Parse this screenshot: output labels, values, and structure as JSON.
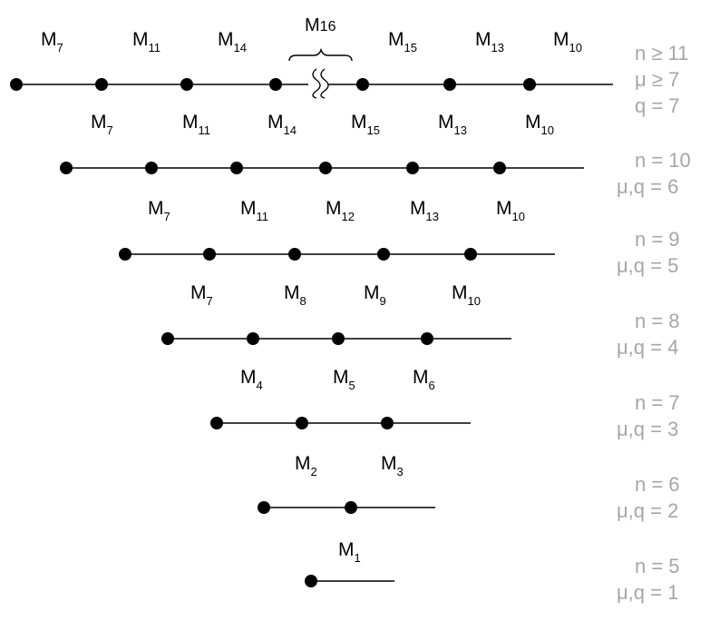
{
  "rows": [
    {
      "id": "n11",
      "labels": [
        [
          "M",
          "7"
        ],
        [
          "M",
          "11"
        ],
        [
          "M",
          "14"
        ],
        [
          "M",
          "15"
        ],
        [
          "M",
          "13"
        ],
        [
          "M",
          "10"
        ]
      ],
      "top_label": [
        "M",
        "16"
      ],
      "side": [
        "n ≥ 11",
        "μ ≥ 7",
        "q = 7"
      ]
    },
    {
      "id": "n10",
      "labels": [
        [
          "M",
          "7"
        ],
        [
          "M",
          "11"
        ],
        [
          "M",
          "14"
        ],
        [
          "M",
          "15"
        ],
        [
          "M",
          "13"
        ],
        [
          "M",
          "10"
        ]
      ],
      "side": [
        "n = 10",
        "μ,q = 6"
      ]
    },
    {
      "id": "n9",
      "labels": [
        [
          "M",
          "7"
        ],
        [
          "M",
          "11"
        ],
        [
          "M",
          "12"
        ],
        [
          "M",
          "13"
        ],
        [
          "M",
          "10"
        ]
      ],
      "side": [
        "n = 9",
        "μ,q = 5"
      ]
    },
    {
      "id": "n8",
      "labels": [
        [
          "M",
          "7"
        ],
        [
          "M",
          "8"
        ],
        [
          "M",
          "9"
        ],
        [
          "M",
          "10"
        ]
      ],
      "side": [
        "n = 8",
        "μ,q = 4"
      ]
    },
    {
      "id": "n7",
      "labels": [
        [
          "M",
          "4"
        ],
        [
          "M",
          "5"
        ],
        [
          "M",
          "6"
        ]
      ],
      "side": [
        "n = 7",
        "μ,q = 3"
      ]
    },
    {
      "id": "n6",
      "labels": [
        [
          "M",
          "2"
        ],
        [
          "M",
          "3"
        ]
      ],
      "side": [
        "n = 6",
        "μ,q = 2"
      ]
    },
    {
      "id": "n5",
      "labels": [
        [
          "M",
          "1"
        ]
      ],
      "side": [
        "n = 5",
        "μ,q = 1"
      ]
    }
  ]
}
